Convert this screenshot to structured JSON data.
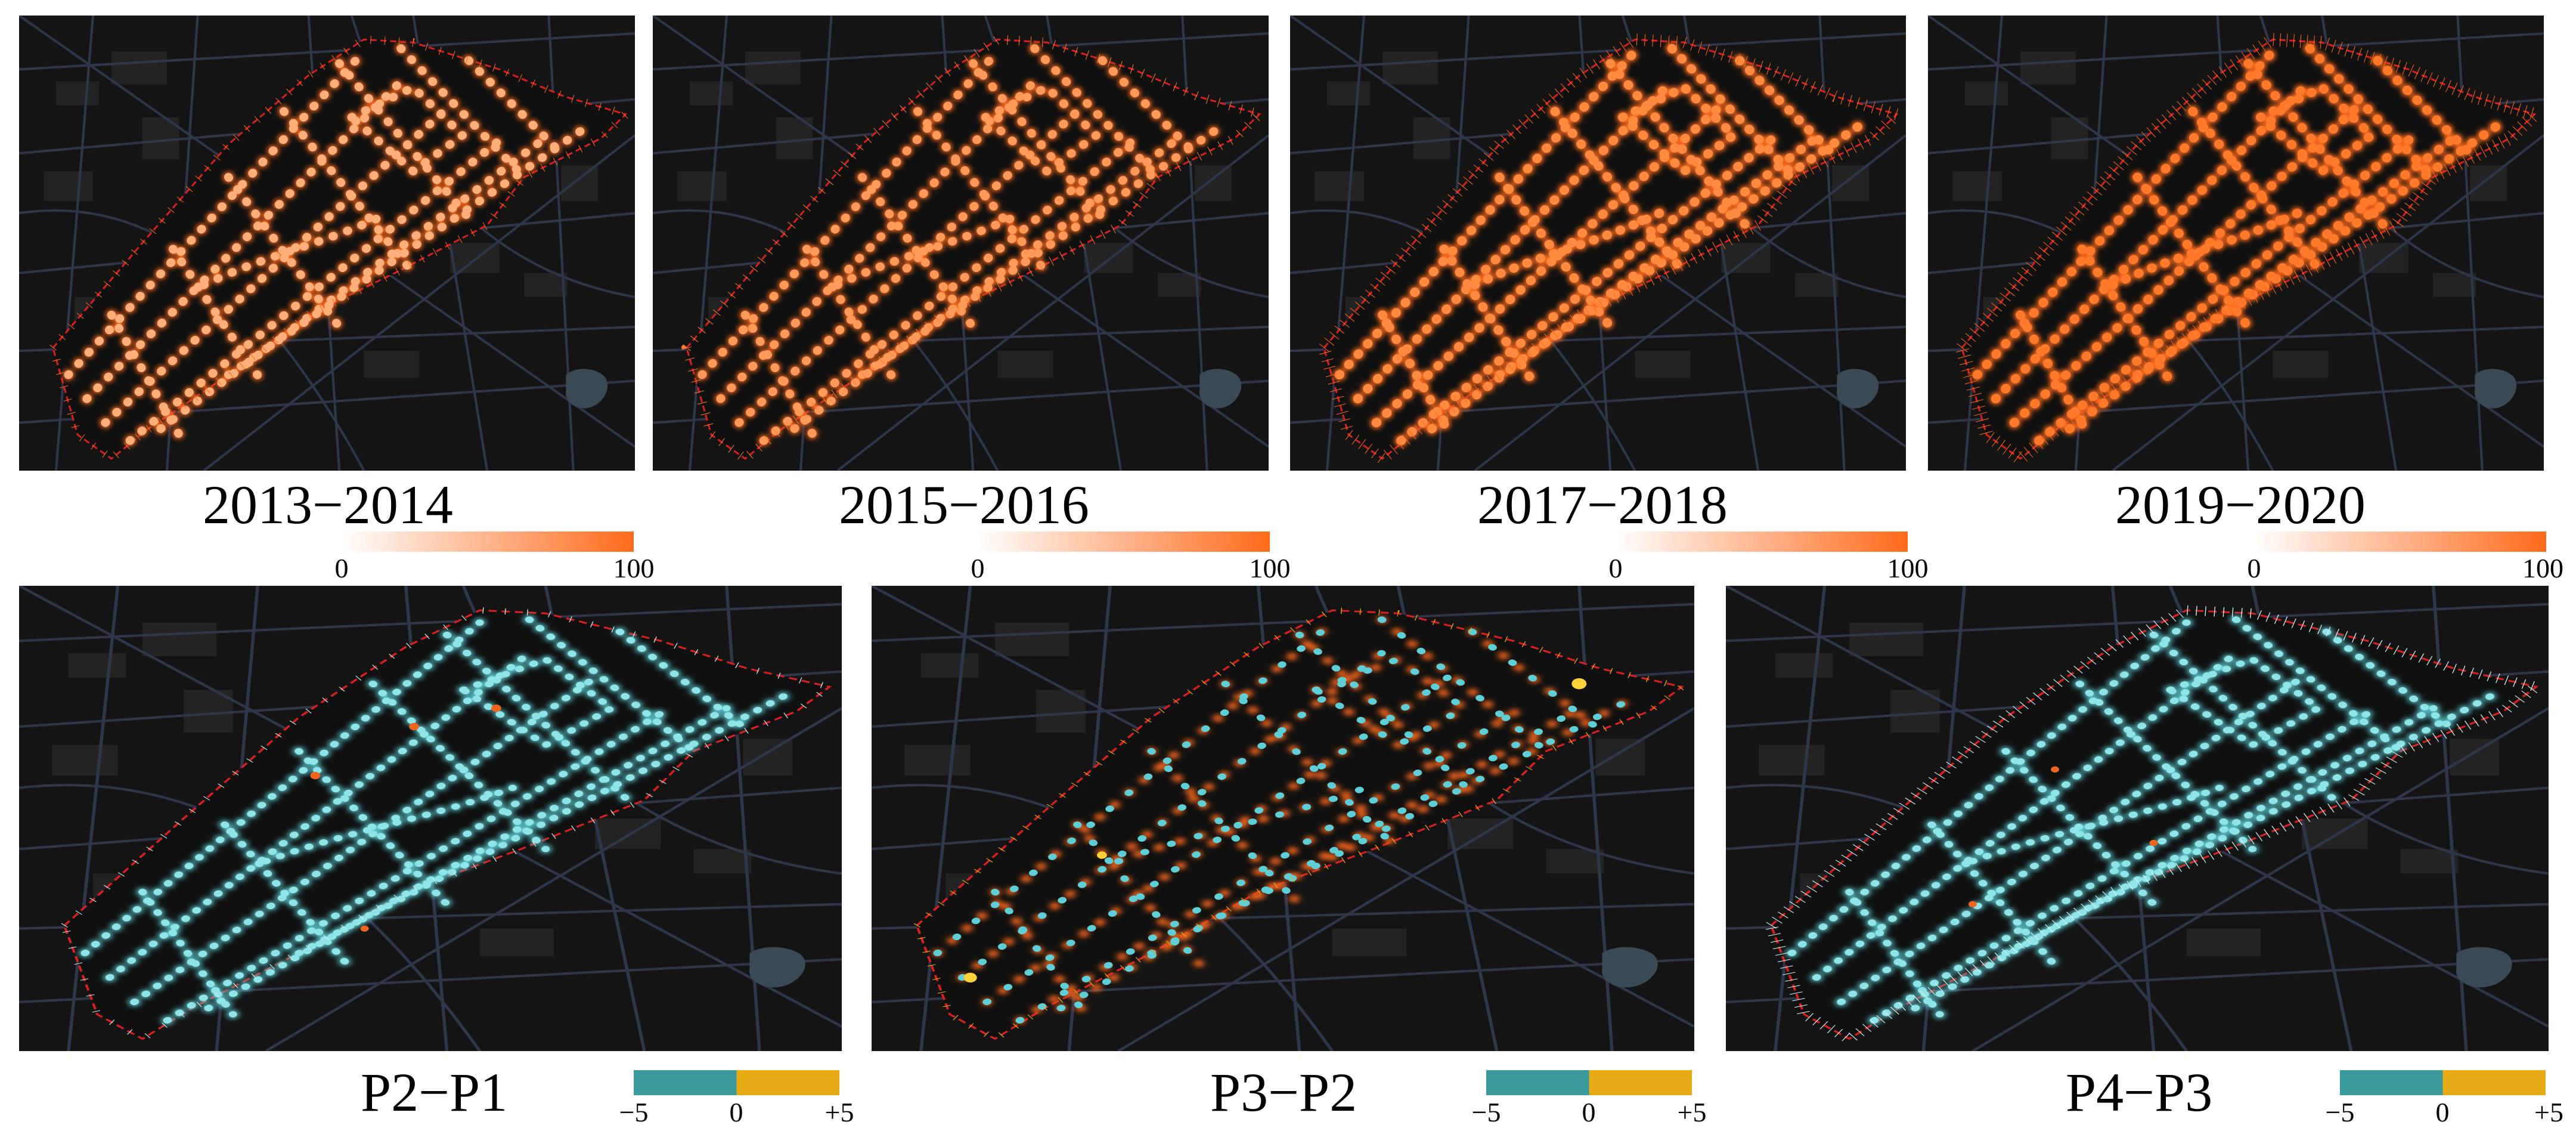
{
  "colors": {
    "background": "#141414",
    "roads": "#30354a",
    "study_boundary": "#d42020",
    "density_low": "#ffffff",
    "density_high": "#ff6a1a",
    "change_negative": "#3a9a9c",
    "change_positive": "#e5aa14",
    "change_point_neg": "#5ecfd6",
    "change_point_pos": "#f0641e"
  },
  "top_row": {
    "panels": [
      {
        "period": "2013−2014",
        "scale_min": "0",
        "scale_max": "100"
      },
      {
        "period": "2015−2016",
        "scale_min": "0",
        "scale_max": "100"
      },
      {
        "period": "2017−2018",
        "scale_min": "0",
        "scale_max": "100"
      },
      {
        "period": "2019−2020",
        "scale_min": "0",
        "scale_max": "100"
      }
    ]
  },
  "bottom_row": {
    "panels": [
      {
        "label": "P2−P1",
        "scale_min": "−5",
        "scale_mid": "0",
        "scale_max": "+5"
      },
      {
        "label": "P3−P2",
        "scale_min": "−5",
        "scale_mid": "0",
        "scale_max": "+5"
      },
      {
        "label": "P4−P3",
        "scale_min": "−5",
        "scale_mid": "0",
        "scale_max": "+5"
      }
    ]
  }
}
